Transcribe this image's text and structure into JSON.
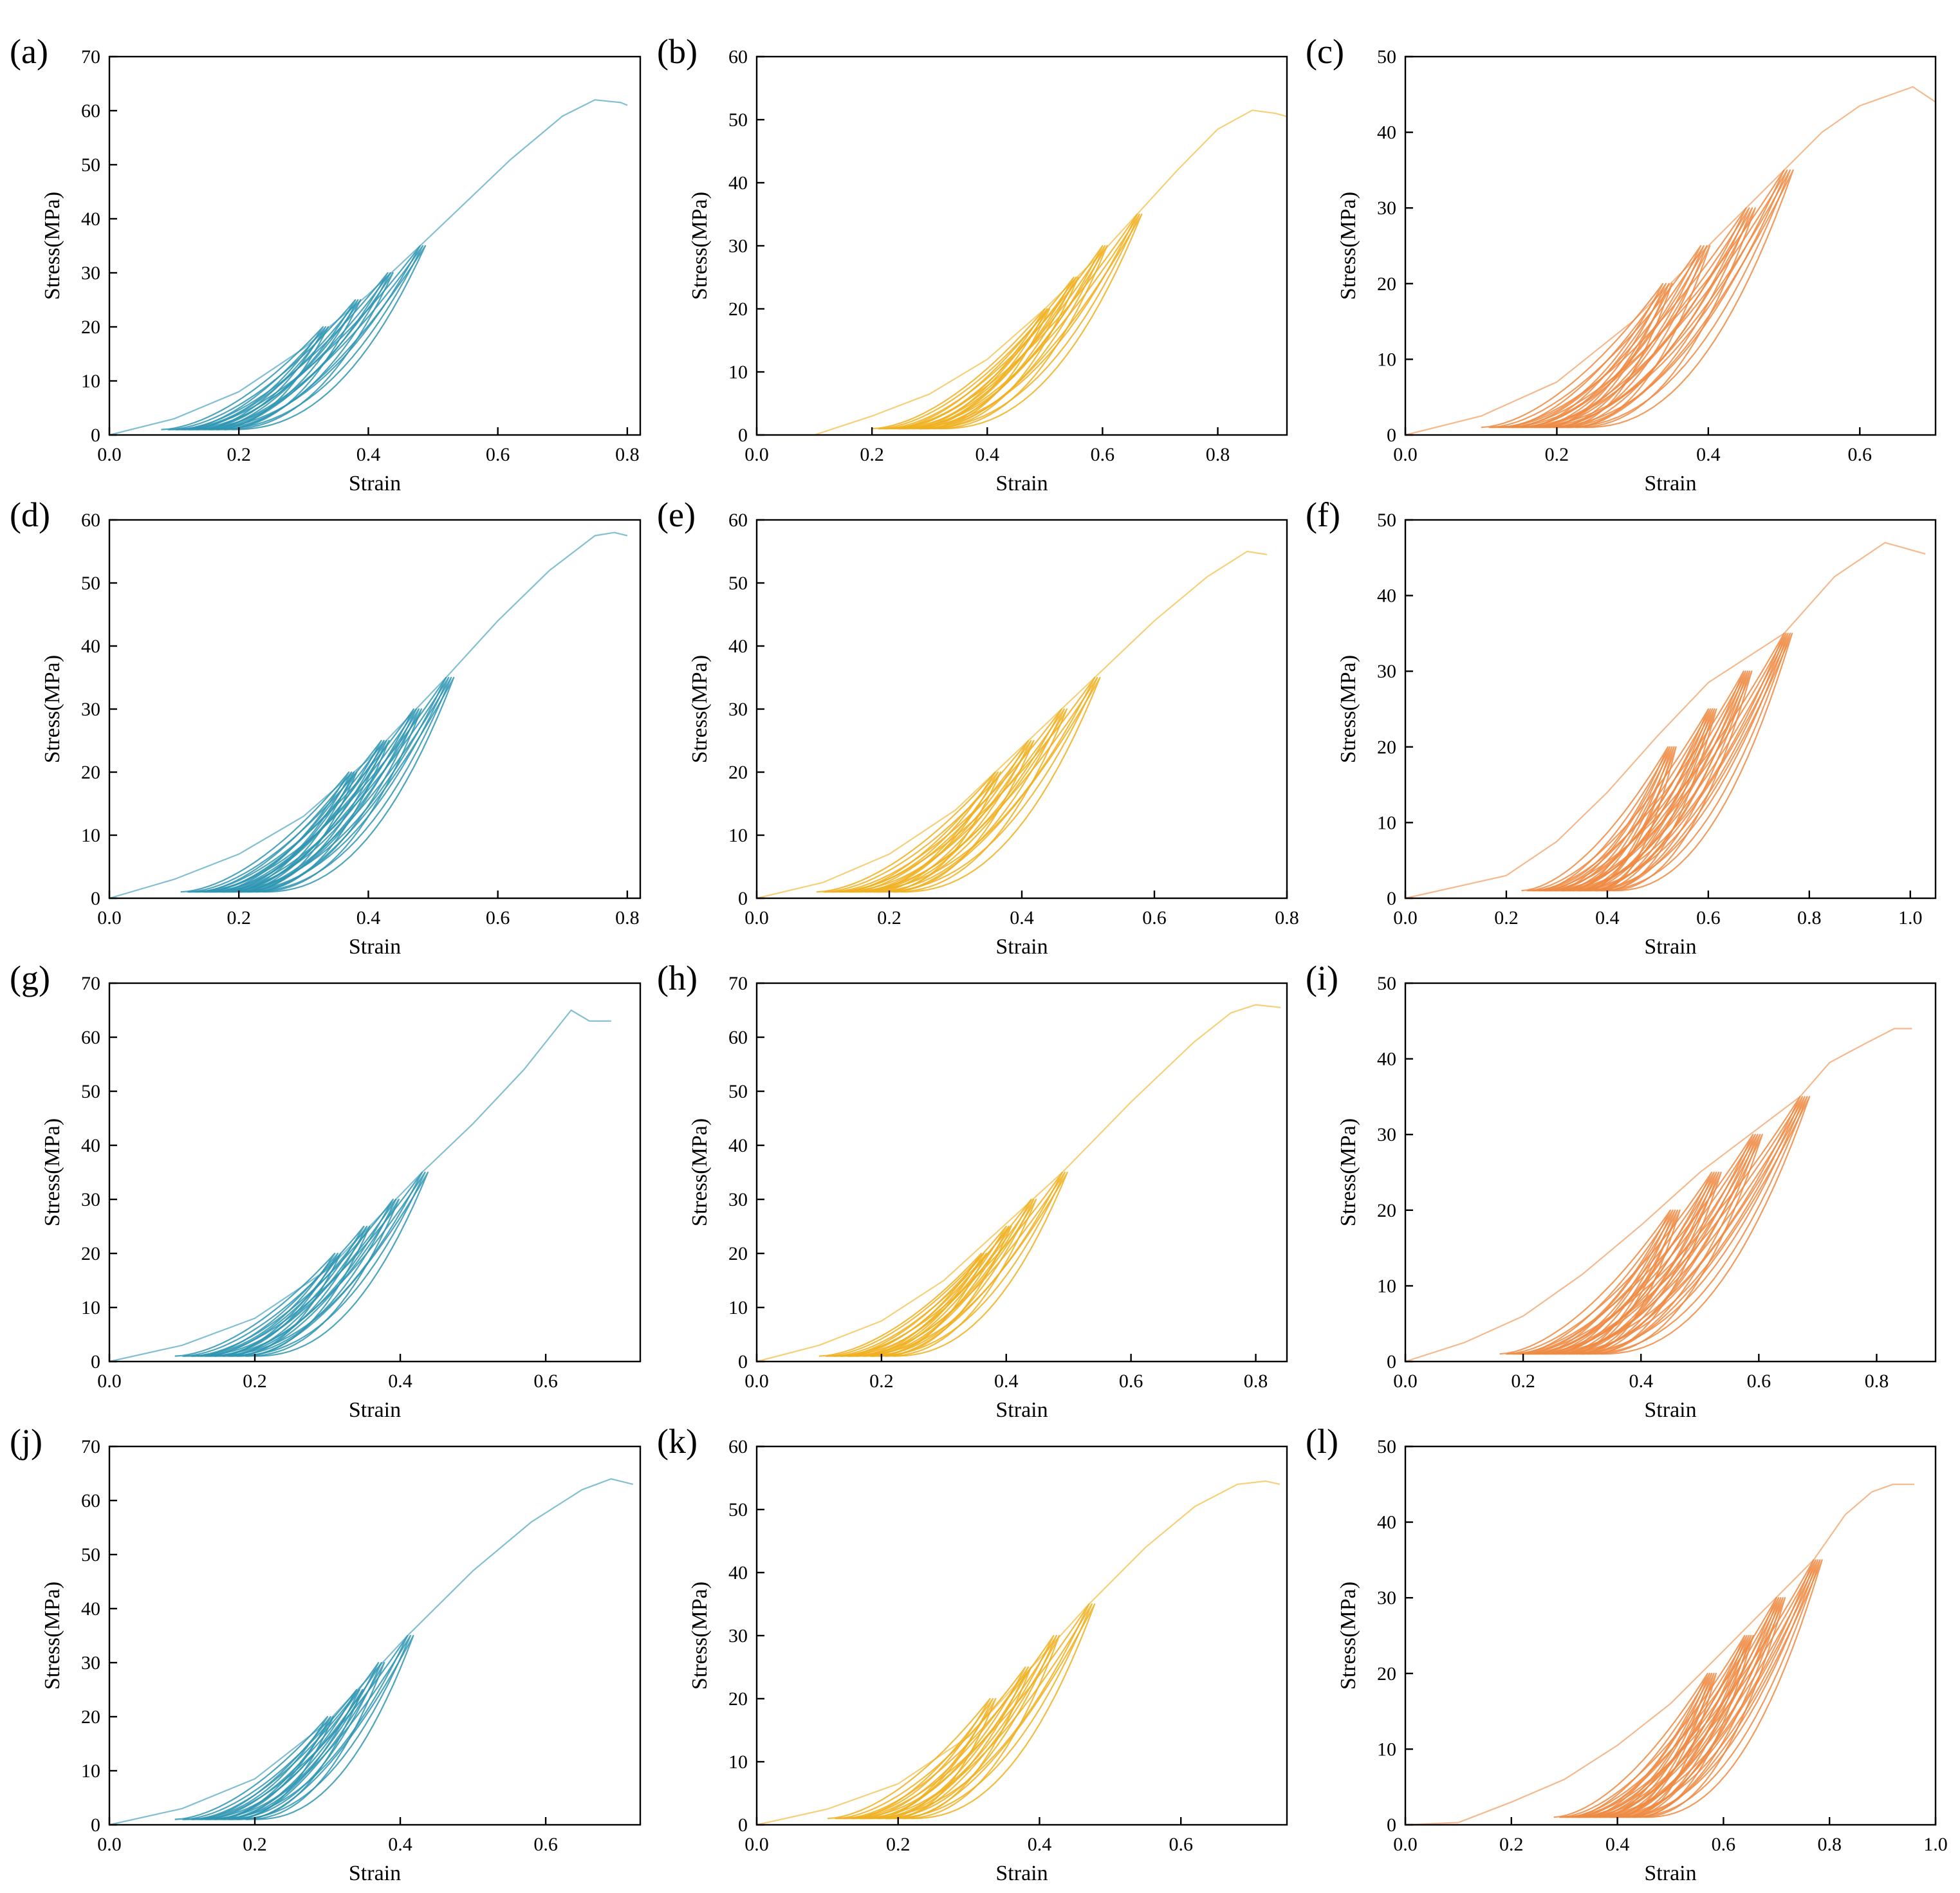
{
  "colors": {
    "blue": "#2e95b2",
    "yellow": "#f0b020",
    "orange": "#ee8a42"
  },
  "chart_data": [
    {
      "label": "(a)",
      "type": "line",
      "color": "blue",
      "xlabel": "Strain",
      "ylabel": "Stress(MPa)",
      "xlim": [
        0,
        0.82
      ],
      "ylim": [
        0,
        70
      ],
      "xticks": [
        "0.0",
        "0.2",
        "0.4",
        "0.6",
        "0.8"
      ],
      "yticks": [
        "0",
        "10",
        "20",
        "30",
        "40",
        "50",
        "60",
        "70"
      ],
      "cycles": {
        "x0": 0.08,
        "x1": 0.15,
        "peaks": [
          20,
          25,
          30,
          35
        ],
        "xpeak": [
          0.33,
          0.38,
          0.43,
          0.48
        ],
        "loops": 3
      },
      "envelope": [
        [
          0,
          0
        ],
        [
          0.1,
          3
        ],
        [
          0.2,
          8
        ],
        [
          0.3,
          16
        ],
        [
          0.4,
          26
        ],
        [
          0.48,
          35
        ],
        [
          0.55,
          43
        ],
        [
          0.62,
          51
        ],
        [
          0.7,
          59
        ],
        [
          0.75,
          62
        ],
        [
          0.79,
          61.5
        ],
        [
          0.8,
          61
        ]
      ],
      "peak": 62
    },
    {
      "label": "(b)",
      "type": "line",
      "color": "yellow",
      "xlabel": "Strain",
      "ylabel": "Stress(MPa)",
      "xlim": [
        0,
        0.92
      ],
      "ylim": [
        0,
        60
      ],
      "xticks": [
        "0.0",
        "0.2",
        "0.4",
        "0.6",
        "0.8"
      ],
      "yticks": [
        "0",
        "10",
        "20",
        "30",
        "40",
        "50",
        "60"
      ],
      "cycles": {
        "x0": 0.2,
        "x1": 0.28,
        "peaks": [
          20,
          25,
          30,
          35
        ],
        "xpeak": [
          0.5,
          0.55,
          0.6,
          0.66
        ],
        "loops": 3
      },
      "envelope": [
        [
          0,
          0
        ],
        [
          0.1,
          0
        ],
        [
          0.2,
          3
        ],
        [
          0.3,
          6.5
        ],
        [
          0.4,
          12
        ],
        [
          0.5,
          20
        ],
        [
          0.6,
          29
        ],
        [
          0.66,
          35
        ],
        [
          0.73,
          42
        ],
        [
          0.8,
          48.5
        ],
        [
          0.86,
          51.5
        ],
        [
          0.9,
          51
        ],
        [
          0.92,
          50.5
        ]
      ],
      "peak": 51.5
    },
    {
      "label": "(c)",
      "type": "line",
      "color": "orange",
      "xlabel": "Strain",
      "ylabel": "Stress(MPa)",
      "xlim": [
        0,
        0.7
      ],
      "ylim": [
        0,
        50
      ],
      "xticks": [
        "0.0",
        "0.2",
        "0.4",
        "0.6"
      ],
      "yticks": [
        "0",
        "10",
        "20",
        "30",
        "40",
        "50"
      ],
      "cycles": {
        "x0": 0.1,
        "x1": 0.2,
        "peaks": [
          20,
          25,
          30,
          35
        ],
        "xpeak": [
          0.34,
          0.39,
          0.45,
          0.5
        ],
        "loops": 4
      },
      "envelope": [
        [
          0,
          0
        ],
        [
          0.1,
          2.5
        ],
        [
          0.2,
          7
        ],
        [
          0.3,
          15
        ],
        [
          0.4,
          25
        ],
        [
          0.5,
          35
        ],
        [
          0.55,
          40
        ],
        [
          0.6,
          43.5
        ],
        [
          0.67,
          46
        ],
        [
          0.7,
          44
        ]
      ],
      "peak": 46
    },
    {
      "label": "(d)",
      "type": "line",
      "color": "blue",
      "xlabel": "Strain",
      "ylabel": "Stress(MPa)",
      "xlim": [
        0,
        0.82
      ],
      "ylim": [
        0,
        60
      ],
      "xticks": [
        "0.0",
        "0.2",
        "0.4",
        "0.6",
        "0.8"
      ],
      "yticks": [
        "0",
        "10",
        "20",
        "30",
        "40",
        "50",
        "60"
      ],
      "cycles": {
        "x0": 0.11,
        "x1": 0.2,
        "peaks": [
          20,
          25,
          30,
          35
        ],
        "xpeak": [
          0.37,
          0.42,
          0.47,
          0.52
        ],
        "loops": 4
      },
      "envelope": [
        [
          0,
          0
        ],
        [
          0.1,
          3
        ],
        [
          0.2,
          7
        ],
        [
          0.3,
          13
        ],
        [
          0.4,
          22
        ],
        [
          0.52,
          35
        ],
        [
          0.6,
          44
        ],
        [
          0.68,
          52
        ],
        [
          0.75,
          57.5
        ],
        [
          0.78,
          58
        ],
        [
          0.8,
          57.5
        ]
      ],
      "peak": 58
    },
    {
      "label": "(e)",
      "type": "line",
      "color": "yellow",
      "xlabel": "Strain",
      "ylabel": "Stress(MPa)",
      "xlim": [
        0,
        0.8
      ],
      "ylim": [
        0,
        60
      ],
      "xticks": [
        "0.0",
        "0.2",
        "0.4",
        "0.6",
        "0.8"
      ],
      "yticks": [
        "0",
        "10",
        "20",
        "30",
        "40",
        "50",
        "60"
      ],
      "cycles": {
        "x0": 0.09,
        "x1": 0.18,
        "peaks": [
          20,
          25,
          30,
          35
        ],
        "xpeak": [
          0.36,
          0.41,
          0.46,
          0.51
        ],
        "loops": 3
      },
      "envelope": [
        [
          0,
          0
        ],
        [
          0.1,
          2.5
        ],
        [
          0.2,
          7
        ],
        [
          0.3,
          14
        ],
        [
          0.4,
          24
        ],
        [
          0.51,
          35
        ],
        [
          0.6,
          44
        ],
        [
          0.68,
          51
        ],
        [
          0.74,
          55
        ],
        [
          0.77,
          54.5
        ]
      ],
      "peak": 55
    },
    {
      "label": "(f)",
      "type": "line",
      "color": "orange",
      "xlabel": "Strain",
      "ylabel": "Stress(MPa)",
      "xlim": [
        0,
        1.05
      ],
      "ylim": [
        0,
        50
      ],
      "xticks": [
        "0.0",
        "0.2",
        "0.4",
        "0.6",
        "0.8",
        "1.0"
      ],
      "yticks": [
        "0",
        "10",
        "20",
        "30",
        "40",
        "50"
      ],
      "cycles": {
        "x0": 0.23,
        "x1": 0.38,
        "peaks": [
          20,
          25,
          30,
          35
        ],
        "xpeak": [
          0.52,
          0.6,
          0.67,
          0.75
        ],
        "loops": 5
      },
      "envelope": [
        [
          0,
          0
        ],
        [
          0.2,
          3
        ],
        [
          0.3,
          7.5
        ],
        [
          0.4,
          14
        ],
        [
          0.5,
          21.5
        ],
        [
          0.6,
          28.5
        ],
        [
          0.75,
          35
        ],
        [
          0.85,
          42.5
        ],
        [
          0.95,
          47
        ],
        [
          1.03,
          45.5
        ]
      ],
      "peak": 47
    },
    {
      "label": "(g)",
      "type": "line",
      "color": "blue",
      "xlabel": "Strain",
      "ylabel": "Stress(MPa)",
      "xlim": [
        0,
        0.73
      ],
      "ylim": [
        0,
        70
      ],
      "xticks": [
        "0.0",
        "0.2",
        "0.4",
        "0.6"
      ],
      "yticks": [
        "0",
        "10",
        "20",
        "30",
        "40",
        "50",
        "60",
        "70"
      ],
      "cycles": {
        "x0": 0.09,
        "x1": 0.16,
        "peaks": [
          20,
          25,
          30,
          35
        ],
        "xpeak": [
          0.31,
          0.35,
          0.39,
          0.43
        ],
        "loops": 3
      },
      "envelope": [
        [
          0,
          0
        ],
        [
          0.1,
          3
        ],
        [
          0.2,
          8
        ],
        [
          0.3,
          17
        ],
        [
          0.43,
          35
        ],
        [
          0.5,
          44
        ],
        [
          0.57,
          54
        ],
        [
          0.635,
          65
        ],
        [
          0.66,
          63
        ],
        [
          0.69,
          63
        ]
      ],
      "peak": 65
    },
    {
      "label": "(h)",
      "type": "line",
      "color": "yellow",
      "xlabel": "Strain",
      "ylabel": "Stress(MPa)",
      "xlim": [
        0,
        0.85
      ],
      "ylim": [
        0,
        70
      ],
      "xticks": [
        "0.0",
        "0.2",
        "0.4",
        "0.6",
        "0.8"
      ],
      "yticks": [
        "0",
        "10",
        "20",
        "30",
        "40",
        "50",
        "60",
        "70"
      ],
      "cycles": {
        "x0": 0.1,
        "x1": 0.18,
        "peaks": [
          20,
          25,
          30,
          35
        ],
        "xpeak": [
          0.36,
          0.4,
          0.44,
          0.49
        ],
        "loops": 3
      },
      "envelope": [
        [
          0,
          0
        ],
        [
          0.1,
          3
        ],
        [
          0.2,
          7.5
        ],
        [
          0.3,
          15
        ],
        [
          0.49,
          35
        ],
        [
          0.6,
          48
        ],
        [
          0.7,
          59
        ],
        [
          0.76,
          64.5
        ],
        [
          0.8,
          66
        ],
        [
          0.84,
          65.5
        ]
      ],
      "peak": 66
    },
    {
      "label": "(i)",
      "type": "line",
      "color": "orange",
      "xlabel": "Strain",
      "ylabel": "Stress(MPa)",
      "xlim": [
        0,
        0.9
      ],
      "ylim": [
        0,
        50
      ],
      "xticks": [
        "0.0",
        "0.2",
        "0.4",
        "0.6",
        "0.8"
      ],
      "yticks": [
        "0",
        "10",
        "20",
        "30",
        "40",
        "50"
      ],
      "cycles": {
        "x0": 0.16,
        "x1": 0.3,
        "peaks": [
          20,
          25,
          30,
          35
        ],
        "xpeak": [
          0.45,
          0.52,
          0.59,
          0.67
        ],
        "loops": 5
      },
      "envelope": [
        [
          0,
          0
        ],
        [
          0.1,
          2.5
        ],
        [
          0.2,
          6
        ],
        [
          0.3,
          11.5
        ],
        [
          0.4,
          18
        ],
        [
          0.5,
          25
        ],
        [
          0.67,
          35
        ],
        [
          0.72,
          39.5
        ],
        [
          0.78,
          42
        ],
        [
          0.83,
          44
        ],
        [
          0.86,
          44
        ]
      ],
      "peak": 44
    },
    {
      "label": "(j)",
      "type": "line",
      "color": "blue",
      "xlabel": "Strain",
      "ylabel": "Stress(MPa)",
      "xlim": [
        0,
        0.73
      ],
      "ylim": [
        0,
        70
      ],
      "xticks": [
        "0.0",
        "0.2",
        "0.4",
        "0.6"
      ],
      "yticks": [
        "0",
        "10",
        "20",
        "30",
        "40",
        "50",
        "60",
        "70"
      ],
      "cycles": {
        "x0": 0.09,
        "x1": 0.16,
        "peaks": [
          20,
          25,
          30,
          35
        ],
        "xpeak": [
          0.3,
          0.34,
          0.37,
          0.41
        ],
        "loops": 3
      },
      "envelope": [
        [
          0,
          0
        ],
        [
          0.1,
          3
        ],
        [
          0.2,
          8.5
        ],
        [
          0.3,
          19
        ],
        [
          0.41,
          35
        ],
        [
          0.5,
          47
        ],
        [
          0.58,
          56
        ],
        [
          0.65,
          62
        ],
        [
          0.69,
          64
        ],
        [
          0.72,
          63
        ]
      ],
      "peak": 64
    },
    {
      "label": "(k)",
      "type": "line",
      "color": "yellow",
      "xlabel": "Strain",
      "ylabel": "Stress(MPa)",
      "xlim": [
        0,
        0.75
      ],
      "ylim": [
        0,
        60
      ],
      "xticks": [
        "0.0",
        "0.2",
        "0.4",
        "0.6"
      ],
      "yticks": [
        "0",
        "10",
        "20",
        "30",
        "40",
        "50",
        "60"
      ],
      "cycles": {
        "x0": 0.1,
        "x1": 0.18,
        "peaks": [
          20,
          25,
          30,
          35
        ],
        "xpeak": [
          0.33,
          0.38,
          0.42,
          0.47
        ],
        "loops": 3
      },
      "envelope": [
        [
          0,
          0
        ],
        [
          0.1,
          2.5
        ],
        [
          0.2,
          6.5
        ],
        [
          0.3,
          14
        ],
        [
          0.47,
          35
        ],
        [
          0.55,
          44
        ],
        [
          0.62,
          50.5
        ],
        [
          0.68,
          54
        ],
        [
          0.72,
          54.5
        ],
        [
          0.74,
          54
        ]
      ],
      "peak": 54.5
    },
    {
      "label": "(l)",
      "type": "line",
      "color": "orange",
      "xlabel": "Strain",
      "ylabel": "Stress(MPa)",
      "xlim": [
        0,
        1.0
      ],
      "ylim": [
        0,
        50
      ],
      "xticks": [
        "0.0",
        "0.2",
        "0.4",
        "0.6",
        "0.8",
        "1.0"
      ],
      "yticks": [
        "0",
        "10",
        "20",
        "30",
        "40",
        "50"
      ],
      "cycles": {
        "x0": 0.28,
        "x1": 0.42,
        "peaks": [
          20,
          25,
          30,
          35
        ],
        "xpeak": [
          0.57,
          0.64,
          0.7,
          0.77
        ],
        "loops": 5
      },
      "envelope": [
        [
          0,
          0
        ],
        [
          0.1,
          0.3
        ],
        [
          0.2,
          3
        ],
        [
          0.3,
          6
        ],
        [
          0.4,
          10.5
        ],
        [
          0.5,
          16
        ],
        [
          0.6,
          23
        ],
        [
          0.77,
          35
        ],
        [
          0.83,
          41
        ],
        [
          0.88,
          44
        ],
        [
          0.92,
          45
        ],
        [
          0.96,
          45
        ]
      ],
      "peak": 45
    }
  ]
}
